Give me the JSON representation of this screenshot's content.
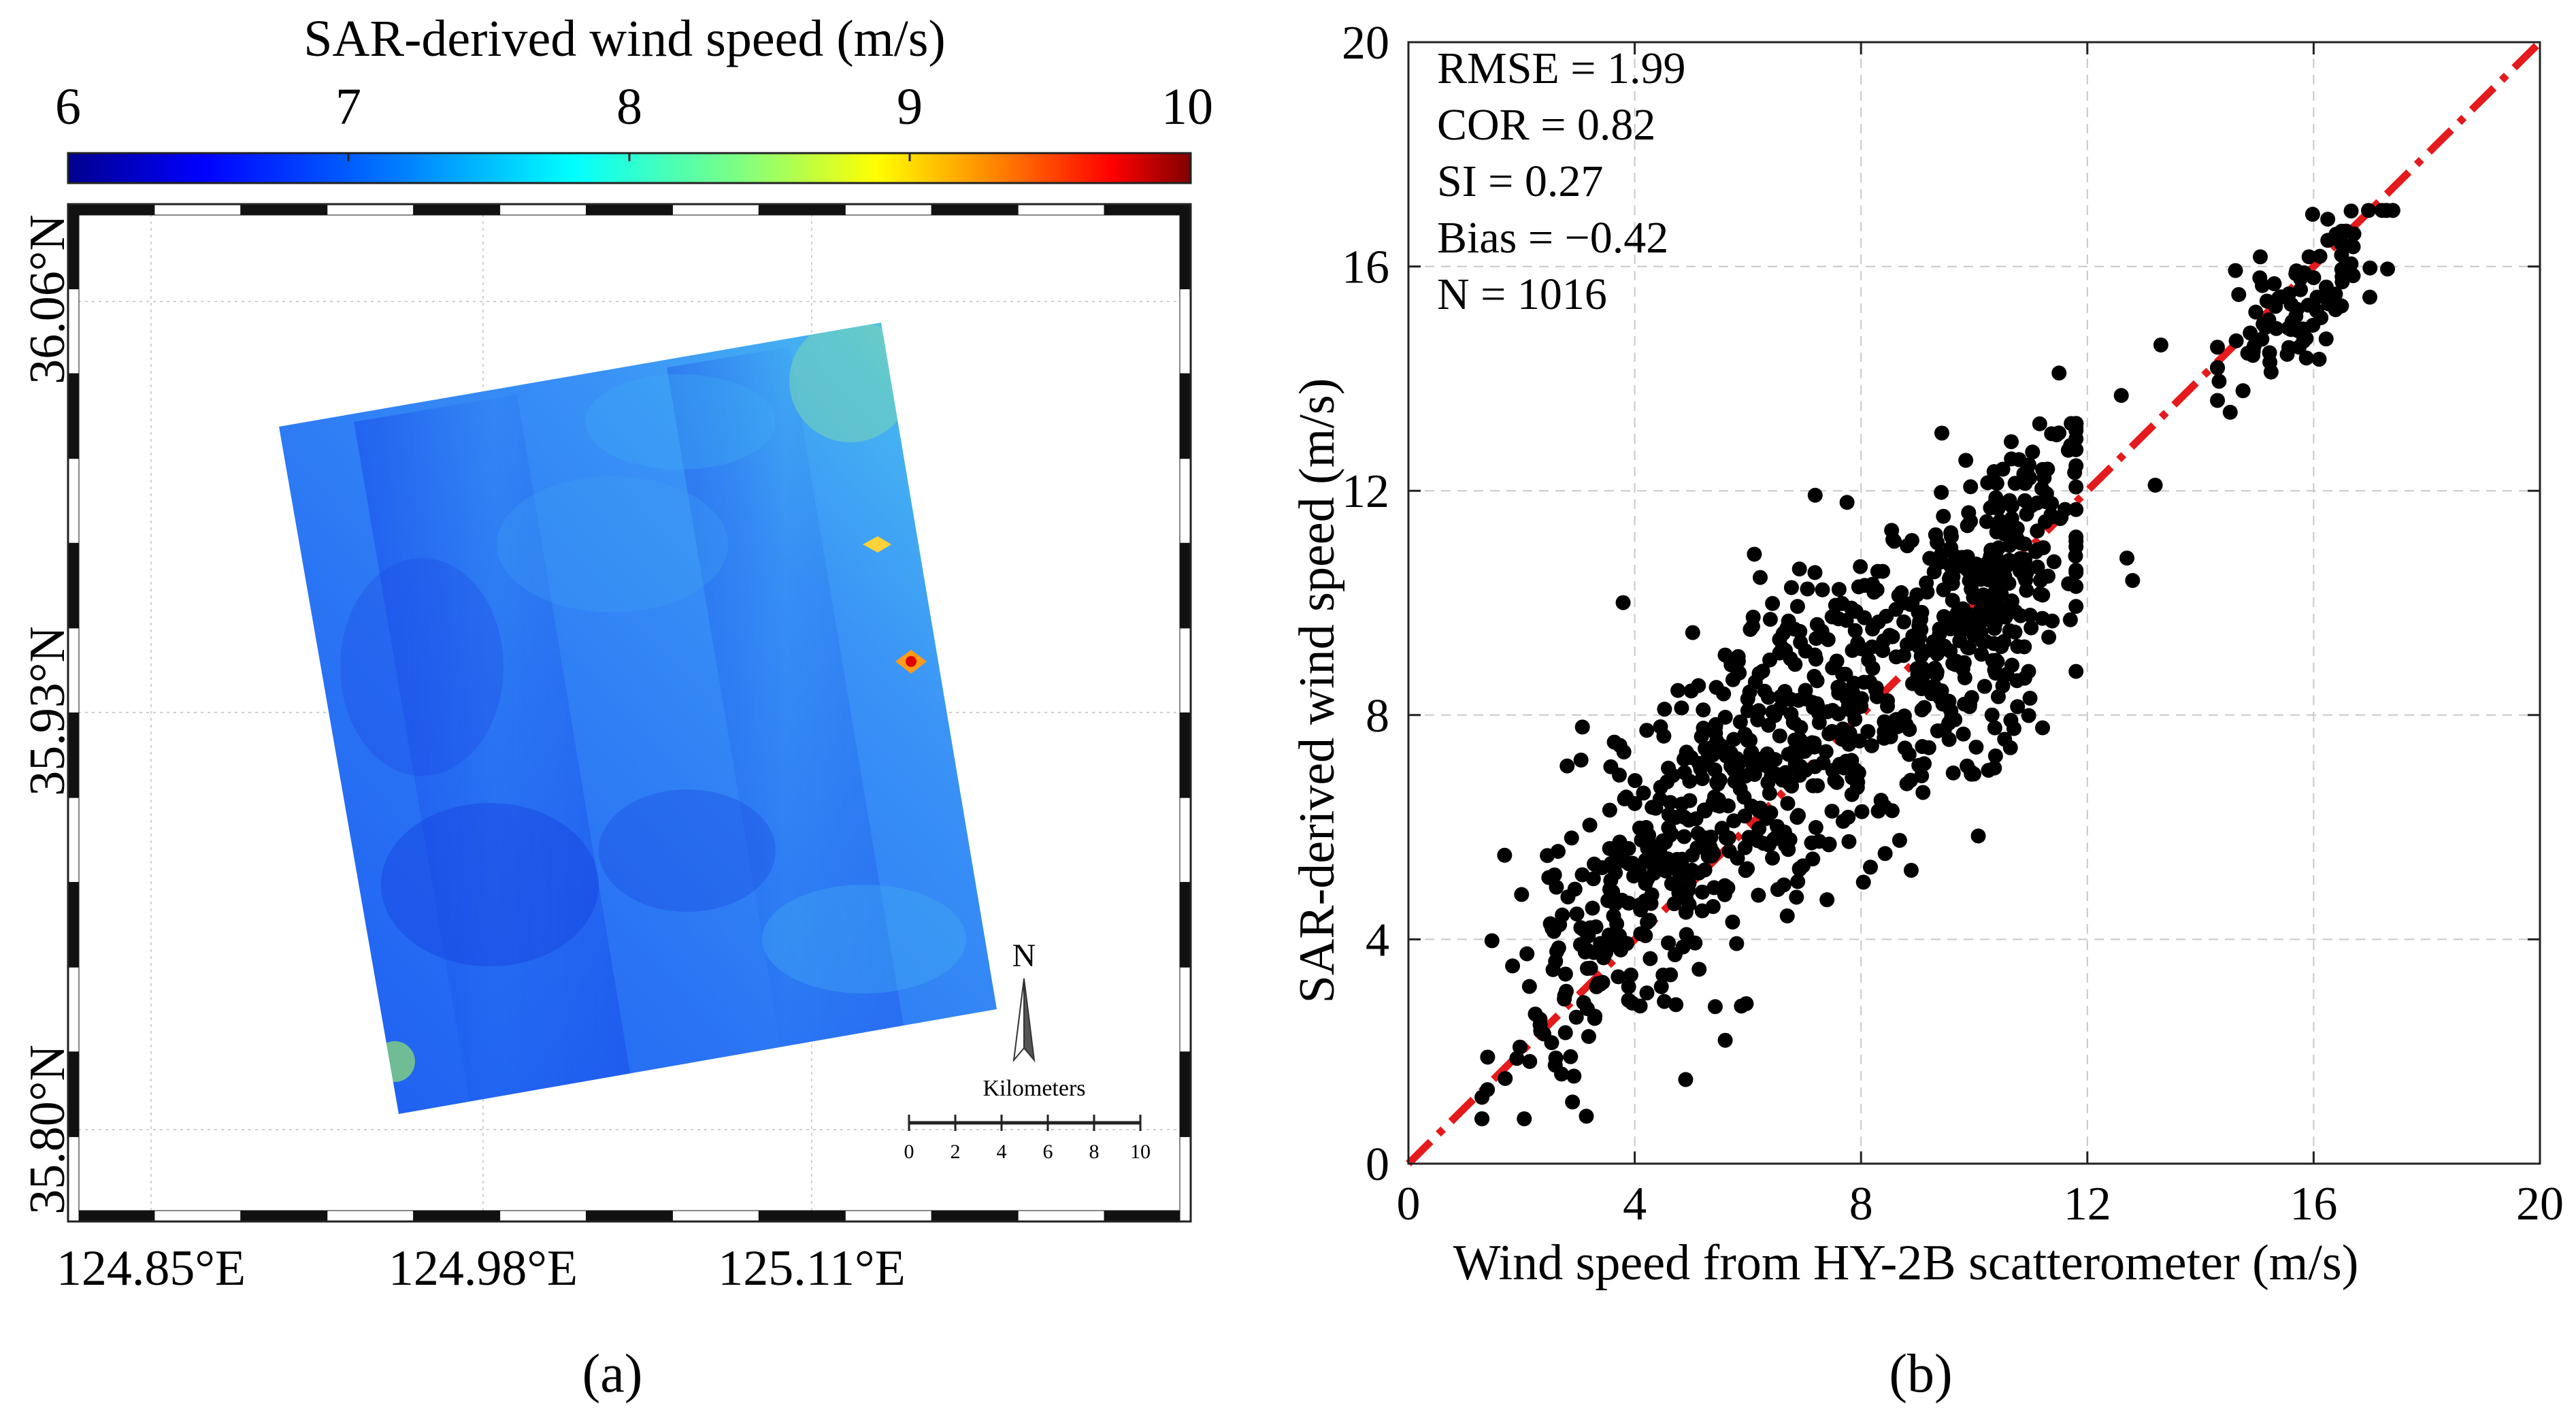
{
  "colors": {
    "regression_line": "#e41a1c",
    "points": "#000000",
    "grid": "#c8c8c8",
    "colormap_stops": [
      "#00008f",
      "#0000ff",
      "#0080ff",
      "#00ffff",
      "#80ff80",
      "#ffff00",
      "#ff8000",
      "#ff0000",
      "#800000"
    ]
  },
  "panel_a": {
    "label": "(a)",
    "colorbar": {
      "title": "SAR-derived wind speed (m/s)",
      "ticks": [
        "6",
        "7",
        "8",
        "9",
        "10"
      ],
      "range": [
        6,
        10
      ]
    },
    "lat_labels": [
      "36.06°N",
      "35.93°N",
      "35.80°N"
    ],
    "lon_labels": [
      "124.85°E",
      "124.98°E",
      "125.11°E"
    ],
    "north_arrow": "N",
    "scale_bar": {
      "title": "Kilometers",
      "ticks": [
        "0",
        "2",
        "4",
        "6",
        "8",
        "10"
      ]
    }
  },
  "panel_b": {
    "label": "(b)",
    "chart_data": {
      "type": "scatter",
      "title": "",
      "xlabel": "Wind speed from HY-2B scatterometer (m/s)",
      "ylabel": "SAR-derived wind speed (m/s)",
      "xlim": [
        0,
        20
      ],
      "ylim": [
        0,
        20
      ],
      "xticks": [
        "0",
        "4",
        "8",
        "12",
        "16",
        "20"
      ],
      "yticks": [
        "0",
        "4",
        "8",
        "12",
        "16",
        "20"
      ],
      "grid": true,
      "stats": [
        "RMSE = 1.99",
        "COR = 0.82",
        "SI = 0.27",
        "Bias = −0.42",
        "N = 1016"
      ],
      "reference_line": {
        "style": "dash-dot",
        "x": [
          0,
          20
        ],
        "y": [
          0,
          20
        ]
      },
      "clusters": [
        {
          "n": 140,
          "x_center": 3.5,
          "x_spread": 1.1,
          "slope": 1.15,
          "intercept": 0.2,
          "noise": 1.4
        },
        {
          "n": 300,
          "x_center": 5.8,
          "x_spread": 1.3,
          "slope": 1.0,
          "intercept": 1.2,
          "noise": 1.9
        },
        {
          "n": 280,
          "x_center": 8.6,
          "x_spread": 1.4,
          "slope": 0.95,
          "intercept": 0.4,
          "noise": 1.8
        },
        {
          "n": 200,
          "x_center": 10.5,
          "x_spread": 0.8,
          "slope": 1.0,
          "intercept": -0.4,
          "noise": 1.7
        },
        {
          "n": 96,
          "x_center": 15.8,
          "x_spread": 0.8,
          "slope": 0.7,
          "intercept": 4.4,
          "noise": 0.9
        }
      ],
      "extra_points": [
        {
          "x": 13.3,
          "y": 14.6
        },
        {
          "x": 13.2,
          "y": 12.1
        },
        {
          "x": 12.8,
          "y": 10.4
        },
        {
          "x": 12.7,
          "y": 10.8
        },
        {
          "x": 12.6,
          "y": 13.7
        },
        {
          "x": 11.7,
          "y": 9.7
        },
        {
          "x": 11.5,
          "y": 14.1
        },
        {
          "x": 4.9,
          "y": 1.5
        },
        {
          "x": 1.7,
          "y": 5.5
        },
        {
          "x": 2.0,
          "y": 4.8
        },
        {
          "x": 1.4,
          "y": 1.9
        },
        {
          "x": 2.9,
          "y": 1.1
        }
      ]
    }
  }
}
